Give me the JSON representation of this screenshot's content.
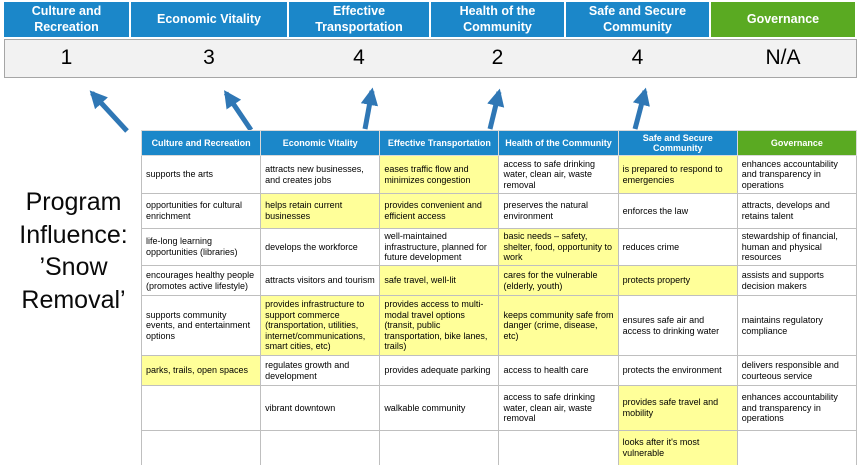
{
  "title": "Program Influence: ’Snow Removal’",
  "colors": {
    "header_blue": "#1b87c9",
    "header_green": "#5aaa22",
    "highlight_yellow": "#ffff99",
    "arrow_blue": "#2f77b5",
    "score_band_bg": "#f2f2f2"
  },
  "scoreboard": {
    "columns": [
      {
        "label": "Culture and Recreation",
        "score": "1"
      },
      {
        "label": "Economic Vitality",
        "score": "3"
      },
      {
        "label": "Effective Transportation",
        "score": "4"
      },
      {
        "label": "Health of the Community",
        "score": "2"
      },
      {
        "label": "Safe and Secure Community",
        "score": "4"
      },
      {
        "label": "Governance",
        "score": "N/A"
      }
    ]
  },
  "matrix": {
    "headers": [
      "Culture and Recreation",
      "Economic Vitality",
      "Effective Transportation",
      "Health of the Community",
      "Safe and Secure Community",
      "Governance"
    ],
    "rows": [
      [
        {
          "text": "supports the arts",
          "highlight": false
        },
        {
          "text": "attracts new businesses, and creates jobs",
          "highlight": false
        },
        {
          "text": "eases traffic flow and minimizes congestion",
          "highlight": true
        },
        {
          "text": "access to safe drinking water, clean air, waste removal",
          "highlight": false
        },
        {
          "text": "is prepared to respond to emergencies",
          "highlight": true
        },
        {
          "text": "enhances accountability and transparency in operations",
          "highlight": false
        }
      ],
      [
        {
          "text": "opportunities for cultural enrichment",
          "highlight": false
        },
        {
          "text": "helps retain current businesses",
          "highlight": true
        },
        {
          "text": "provides convenient and efficient access",
          "highlight": true
        },
        {
          "text": "preserves the natural environment",
          "highlight": false
        },
        {
          "text": "enforces the law",
          "highlight": false
        },
        {
          "text": "attracts, develops and retains talent",
          "highlight": false
        }
      ],
      [
        {
          "text": "life-long learning opportunities (libraries)",
          "highlight": false
        },
        {
          "text": "develops the workforce",
          "highlight": false
        },
        {
          "text": "well-maintained infrastructure, planned for future development",
          "highlight": false
        },
        {
          "text": "basic needs – safety, shelter, food, opportunity to work",
          "highlight": true
        },
        {
          "text": "reduces crime",
          "highlight": false
        },
        {
          "text": "stewardship of financial, human and physical resources",
          "highlight": false
        }
      ],
      [
        {
          "text": "encourages healthy people (promotes active lifestyle)",
          "highlight": false
        },
        {
          "text": "attracts visitors and tourism",
          "highlight": false
        },
        {
          "text": "safe travel, well-lit",
          "highlight": true
        },
        {
          "text": "cares for the vulnerable (elderly, youth)",
          "highlight": true
        },
        {
          "text": "protects property",
          "highlight": true
        },
        {
          "text": "assists and supports decision makers",
          "highlight": false
        }
      ],
      [
        {
          "text": "supports community events, and entertainment options",
          "highlight": false
        },
        {
          "text": "provides infrastructure to support commerce (transportation, utilities, internet/communications, smart cities, etc)",
          "highlight": true
        },
        {
          "text": "provides access to multi-modal travel options (transit, public transportation, bike lanes, trails)",
          "highlight": true
        },
        {
          "text": "keeps community safe from danger (crime, disease, etc)",
          "highlight": true
        },
        {
          "text": "ensures safe air and access to drinking water",
          "highlight": false
        },
        {
          "text": "maintains regulatory compliance",
          "highlight": false
        }
      ],
      [
        {
          "text": "parks, trails, open spaces",
          "highlight": true
        },
        {
          "text": "regulates growth and development",
          "highlight": false
        },
        {
          "text": "provides adequate parking",
          "highlight": false
        },
        {
          "text": "access to health care",
          "highlight": false
        },
        {
          "text": "protects the environment",
          "highlight": false
        },
        {
          "text": "delivers responsible and courteous service",
          "highlight": false
        }
      ],
      [
        {
          "text": "",
          "highlight": false
        },
        {
          "text": "vibrant downtown",
          "highlight": false
        },
        {
          "text": "walkable community",
          "highlight": false
        },
        {
          "text": "access to safe drinking water, clean air, waste removal",
          "highlight": false
        },
        {
          "text": "provides safe travel and mobility",
          "highlight": true
        },
        {
          "text": "enhances accountability and transparency in operations",
          "highlight": false
        }
      ],
      [
        {
          "text": "",
          "highlight": false
        },
        {
          "text": "",
          "highlight": false
        },
        {
          "text": "",
          "highlight": false
        },
        {
          "text": "",
          "highlight": false
        },
        {
          "text": "looks after it's most vulnerable",
          "highlight": true
        },
        {
          "text": "",
          "highlight": false
        }
      ]
    ]
  }
}
